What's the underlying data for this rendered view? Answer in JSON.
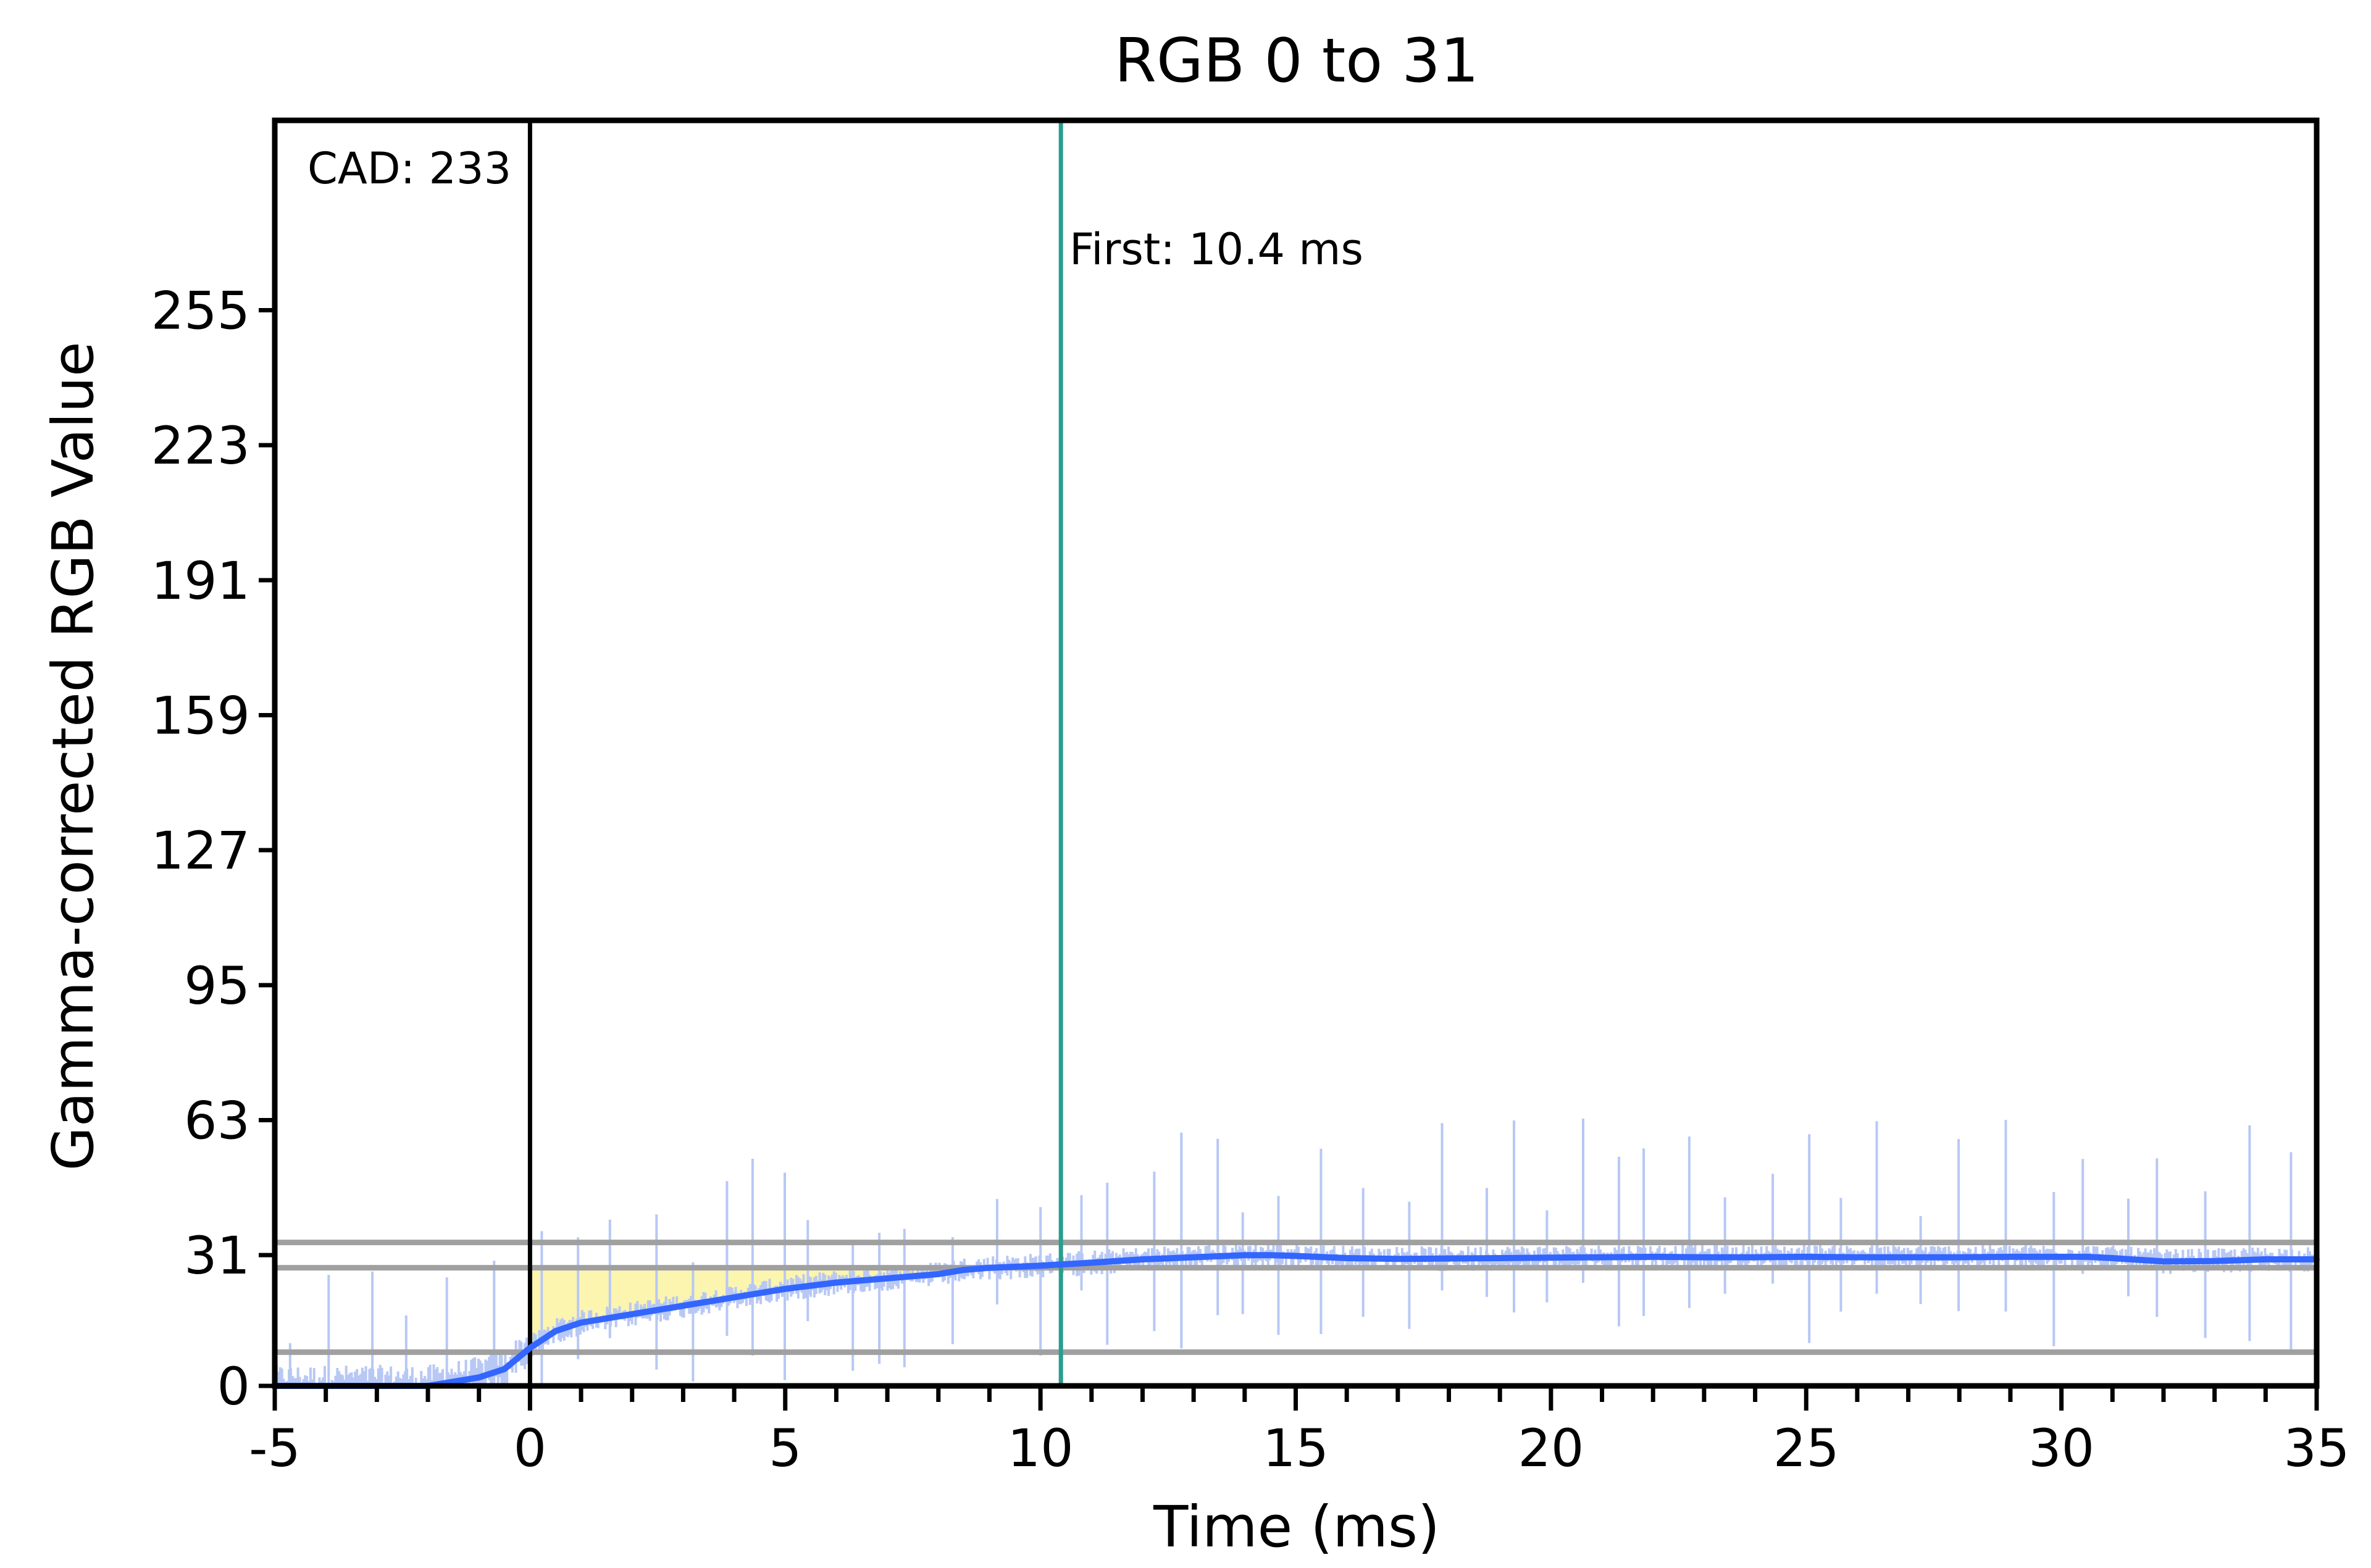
{
  "chart_data": {
    "type": "line",
    "title": "RGB 0 to 31",
    "xlabel": "Time (ms)",
    "ylabel": "Gamma-corrected RGB Value",
    "xlim": [
      -5,
      35
    ],
    "ylim": [
      0,
      300
    ],
    "xticks": [
      -5,
      0,
      5,
      10,
      15,
      20,
      25,
      30,
      35
    ],
    "yticks": [
      0,
      31,
      63,
      95,
      127,
      159,
      191,
      223,
      255
    ],
    "grid": false,
    "legend": "none",
    "colors": {
      "smoothed": "#3366ff",
      "raw": "#b8c8f5",
      "shade": "#fbf5b0",
      "reference": "#a0a0a0",
      "marker": "#2a9d8f",
      "axis": "#000000"
    },
    "reference_lines_y": [
      8,
      28,
      34
    ],
    "start_line_x": 0,
    "first_line_x": 10.4,
    "annotations": {
      "cad": "CAD: 233",
      "first": "First: 10.4 ms"
    },
    "series": [
      {
        "style": "smoothed",
        "x": [
          -5,
          -4,
          -3,
          -2.5,
          -2,
          -1.5,
          -1,
          -0.5,
          0,
          0.5,
          1,
          1.5,
          2,
          3,
          4,
          5,
          6,
          7,
          8,
          8.5,
          9,
          10,
          10.4,
          11,
          12,
          13,
          14,
          14.5,
          15,
          16,
          17,
          18,
          19,
          20,
          21,
          22,
          23,
          24,
          25,
          26,
          27,
          28,
          29,
          30,
          30.5,
          31,
          32,
          33,
          34,
          35
        ],
        "y": [
          0,
          0,
          0,
          0,
          0,
          1,
          2,
          4,
          9,
          13,
          15,
          16,
          17,
          19,
          21,
          23,
          24.5,
          25.5,
          26.5,
          27.5,
          28,
          28.5,
          28.8,
          29.2,
          30,
          30.5,
          31,
          31,
          30.8,
          30.3,
          30.1,
          30.2,
          30.3,
          30.4,
          30.5,
          30.6,
          30.5,
          30.5,
          30.6,
          30.5,
          30.5,
          30.5,
          30.6,
          30.6,
          30.6,
          30.3,
          29.5,
          29.6,
          30,
          30
        ]
      }
    ]
  }
}
